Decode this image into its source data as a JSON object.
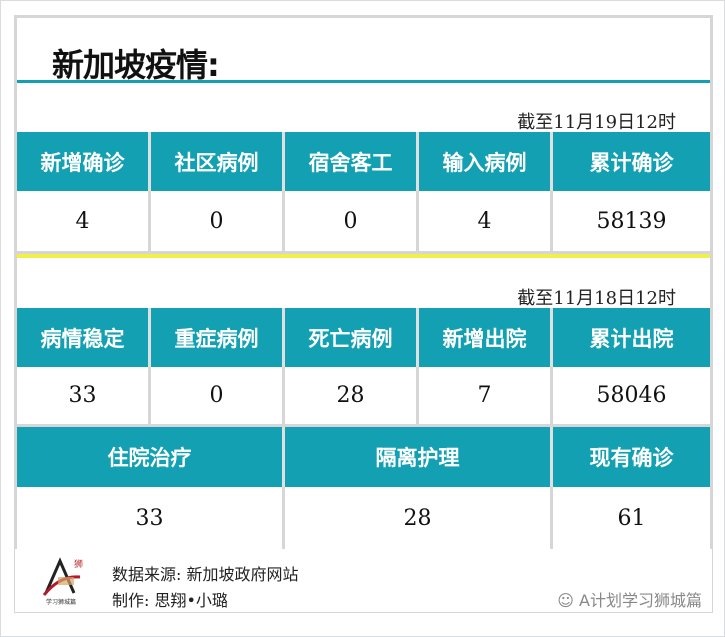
{
  "title": "新加坡疫情:",
  "section1": {
    "date": "截至11月19日12时",
    "headers": [
      "新增确诊",
      "社区病例",
      "宿舍客工",
      "输入病例",
      "累计确诊"
    ],
    "values": [
      "4",
      "0",
      "0",
      "4",
      "58139"
    ]
  },
  "section2": {
    "date": "截至11月18日12时",
    "headers": [
      "病情稳定",
      "重症病例",
      "死亡病例",
      "新增出院",
      "累计出院"
    ],
    "values": [
      "33",
      "0",
      "28",
      "7",
      "58046"
    ],
    "headers2": [
      "住院治疗",
      "隔离护理",
      "现有确诊"
    ],
    "values2": [
      "33",
      "28",
      "61"
    ]
  },
  "footer": {
    "source": "数据来源: 新加坡政府网站",
    "author": "制作: 思翔•小璐",
    "watermark": "A计划学习狮城篇",
    "logo_text": "学习狮城篇"
  },
  "colors": {
    "header": "#13a0b3",
    "divider": "#f3ef4a"
  }
}
